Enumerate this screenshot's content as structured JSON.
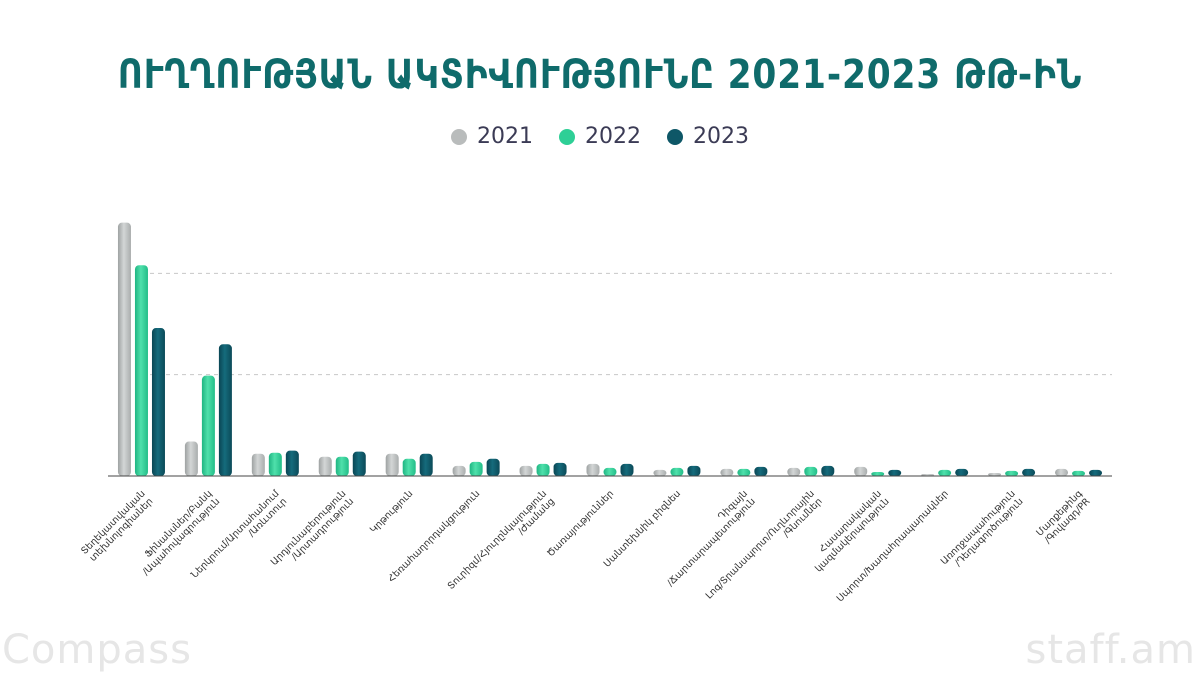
{
  "chart_data": {
    "type": "bar",
    "title": "ՈՒՂՂՈՒԹՅԱՆ ԱԿՏԻՎՈՒԹՅՈՒՆԸ 2021-2023 ԹԹ-ԻՆ",
    "categories": [
      [
        "Տեղեկատվական",
        "տեխնոլոգիաներ"
      ],
      [
        "Ֆինանսներ/Բանկ",
        "/Ապահովագրություն"
      ],
      [
        "Ներկրում/Արտահանում",
        "/Առևտուր"
      ],
      [
        "Արդյունաբերություն",
        "/Արտադրություն"
      ],
      [
        "Կրթություն"
      ],
      [
        "Հեռահաղորդակցություն"
      ],
      [
        "Տուրիզմ/Հյուրընկալություն",
        "/Ժամանց"
      ],
      [
        "Ծառայություններ"
      ],
      [
        "Սանտեխնիկ բիզնես"
      ],
      [
        "Դիզայն",
        "/Ճարտարապետություն"
      ],
      [
        "Լոգ/Տրանսպորտ/Ուղևորային",
        "/Գնումներ"
      ],
      [
        "Հասարակական",
        "կազմակերպություն"
      ],
      [
        "Սպորտ/Խաղահրապարակներ"
      ],
      [
        "Առողջապահություն",
        "/Դեղագործություն"
      ],
      [
        "Մարքեթինգ",
        "/Գովազդ/PR"
      ]
    ],
    "series": [
      {
        "name": "2021",
        "color": "#b9bcbc",
        "values": [
          250,
          34,
          22,
          19,
          22,
          10,
          10,
          12,
          6,
          7,
          8,
          9,
          2,
          3,
          7
        ]
      },
      {
        "name": "2022",
        "color": "#2ecf96",
        "values": [
          208,
          99,
          23,
          19,
          17,
          14,
          12,
          8,
          8,
          7,
          9,
          4,
          6,
          5,
          5
        ]
      },
      {
        "name": "2023",
        "color": "#0e5767",
        "values": [
          146,
          130,
          25,
          24,
          22,
          17,
          13,
          12,
          10,
          9,
          10,
          6,
          7,
          7,
          6
        ]
      }
    ],
    "ylim": [
      0,
      300
    ],
    "grid": true,
    "legend": "top-center"
  },
  "legend": {
    "items": [
      {
        "label": "2021",
        "color": "#b9bcbc"
      },
      {
        "label": "2022",
        "color": "#2ecf96"
      },
      {
        "label": "2023",
        "color": "#0e5767"
      }
    ]
  },
  "branding": {
    "left": "Compass",
    "right": "staff.am"
  }
}
